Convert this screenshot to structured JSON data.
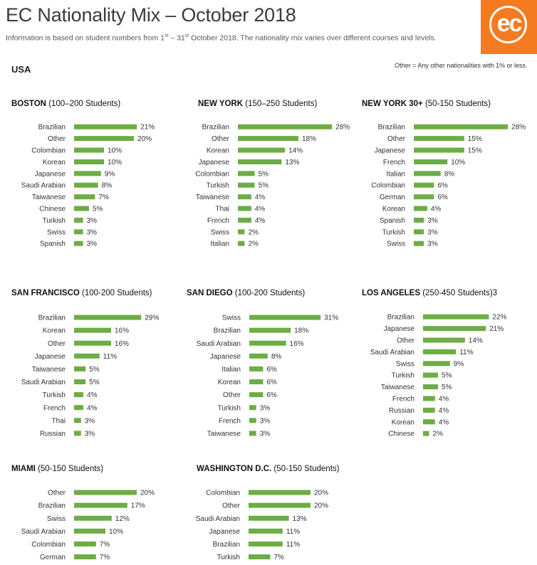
{
  "header": {
    "title": "EC Nationality Mix – October 2018",
    "subtitle_pre": "Information is based on student numbers from 1",
    "sup1": "st",
    "subtitle_mid": " – 31",
    "sup2": "st",
    "subtitle_post": " October 2018. The nationality mix varies over different courses and levels.",
    "logo_text": "ec"
  },
  "region": "USA",
  "legend_note": "Other = Any other nationalities with 1% or less",
  "colors": {
    "bar": "#6cad45",
    "logo_bg": "#f47b20"
  },
  "chart_data": [
    {
      "type": "bar",
      "orientation": "horizontal",
      "title": "BOSTON",
      "subtitle": "(100–200 Students)",
      "categories": [
        "Brazilian",
        "Other",
        "Colombian",
        "Korean",
        "Japanese",
        "Saudi Arabian",
        "Taiwanese",
        "Chinese",
        "Turkish",
        "Swiss",
        "Spanish"
      ],
      "values": [
        21,
        20,
        10,
        10,
        9,
        8,
        7,
        5,
        3,
        3,
        3
      ],
      "value_labels": [
        "21%",
        "20%",
        "10%",
        "10%",
        "9%",
        "8%",
        "7%",
        "5%",
        "3%",
        "3%",
        "3%"
      ]
    },
    {
      "type": "bar",
      "orientation": "horizontal",
      "title": "NEW YORK",
      "subtitle": "(150–250 Students)",
      "categories": [
        "Brazilian",
        "Other",
        "Korean",
        "Japanese",
        "Colombian",
        "Turkish",
        "Taiwanese",
        "Thai",
        "French",
        "Swiss",
        "Italian"
      ],
      "values": [
        28,
        18,
        14,
        13,
        5,
        5,
        4,
        4,
        4,
        2,
        2
      ],
      "value_labels": [
        "28%",
        "18%",
        "14%",
        "13%",
        "5%",
        "5%",
        "4%",
        "4%",
        "4%",
        "2%",
        "2%"
      ]
    },
    {
      "type": "bar",
      "orientation": "horizontal",
      "title": "NEW YORK 30+",
      "subtitle": "(50-150 Students)",
      "categories": [
        "Brazilian",
        "Other",
        "Japanese",
        "French",
        "Italian",
        "Colombian",
        "German",
        "Korean",
        "Spanish",
        "Turkish",
        "Swiss"
      ],
      "values": [
        28,
        15,
        15,
        10,
        8,
        6,
        6,
        4,
        3,
        3,
        3
      ],
      "value_labels": [
        "28%",
        "15%",
        "15%",
        "10%",
        "8%",
        "6%",
        "6%",
        "4%",
        "3%",
        "3%",
        "3%"
      ]
    },
    {
      "type": "bar",
      "orientation": "horizontal",
      "title": "SAN FRANCISCO",
      "subtitle": "(100-200 Students)",
      "categories": [
        "Brazilian",
        "Korean",
        "Other",
        "Japanese",
        "Taiwanese",
        "Saudi Arabian",
        "Turkish",
        "French",
        "Thai",
        "Russian"
      ],
      "values": [
        29,
        16,
        16,
        11,
        5,
        5,
        4,
        4,
        3,
        3
      ],
      "value_labels": [
        "29%",
        "16%",
        "16%",
        "11%",
        "5%",
        "5%",
        "4%",
        "4%",
        "3%",
        "3%"
      ]
    },
    {
      "type": "bar",
      "orientation": "horizontal",
      "title": "SAN DIEGO",
      "subtitle": "(100-200 Students)",
      "categories": [
        "Swiss",
        "Brazilian",
        "Saudi Arabian",
        "Japanese",
        "Italian",
        "Korean",
        "Other",
        "Turkish",
        "French",
        "Taiwanese"
      ],
      "values": [
        31,
        18,
        16,
        8,
        6,
        6,
        6,
        3,
        3,
        3
      ],
      "value_labels": [
        "31%",
        "18%",
        "16%",
        "8%",
        "6%",
        "6%",
        "6%",
        "3%",
        "3%",
        "3%"
      ]
    },
    {
      "type": "bar",
      "orientation": "horizontal",
      "title": "LOS ANGELES",
      "subtitle": "(250-450 Students)3",
      "categories": [
        "Brazilian",
        "Japanese",
        "Other",
        "Saudi Arabian",
        "Swiss",
        "Turkish",
        "Taiwanese",
        "French",
        "Russian",
        "Korean",
        "Chinese"
      ],
      "values": [
        22,
        21,
        14,
        11,
        9,
        5,
        5,
        4,
        4,
        4,
        2
      ],
      "value_labels": [
        "22%",
        "21%",
        "14%",
        "11%",
        "9%",
        "5%",
        "5%",
        "4%",
        "4%",
        "4%",
        "2%"
      ]
    },
    {
      "type": "bar",
      "orientation": "horizontal",
      "title": "MIAMI",
      "subtitle": "(50-150 Students)",
      "categories": [
        "Other",
        "Brazilian",
        "Swiss",
        "Saudi Arabian",
        "Colombian",
        "German"
      ],
      "values": [
        20,
        17,
        12,
        10,
        7,
        7
      ],
      "value_labels": [
        "20%",
        "17%",
        "12%",
        "10%",
        "7%",
        "7%"
      ]
    },
    {
      "type": "bar",
      "orientation": "horizontal",
      "title": "WASHINGTON D.C.",
      "subtitle": "(50-150 Students)",
      "categories": [
        "Colombian",
        "Other",
        "Saudi Arabian",
        "Japanese",
        "Brazilian",
        "Turkish"
      ],
      "values": [
        20,
        20,
        13,
        11,
        11,
        7
      ],
      "value_labels": [
        "20%",
        "20%",
        "13%",
        "11%",
        "11%",
        "7%"
      ]
    }
  ]
}
